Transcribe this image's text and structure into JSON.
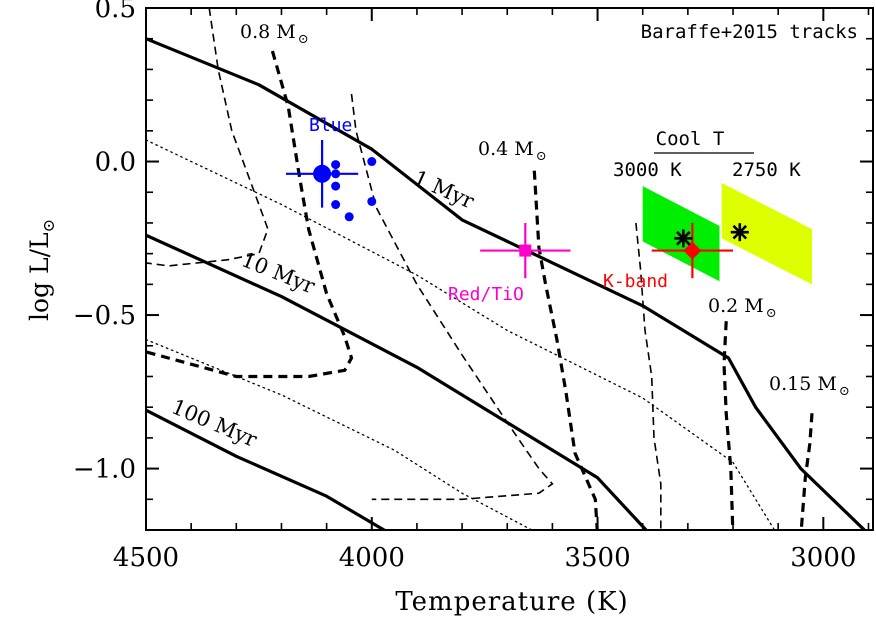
{
  "chart_data": {
    "type": "line",
    "title": "Baraffe+2015 tracks",
    "xlabel": "Temperature (K)",
    "ylabel_main": "log L/L",
    "ylabel_sub": "⊙",
    "xlim": [
      4500,
      2890
    ],
    "ylim": [
      -1.2,
      0.5
    ],
    "x_ticks": [
      4500,
      4000,
      3500,
      3000
    ],
    "x_tick_labels": [
      "4500",
      "4000",
      "3500",
      "3000"
    ],
    "y_ticks": [
      0.5,
      0.0,
      -0.5,
      -1.0
    ],
    "y_tick_labels": [
      "0.5",
      "0.0",
      "−0.5",
      "−1.0"
    ],
    "grid": false,
    "isochrones": [
      {
        "label": "1 Myr",
        "style": "solid",
        "points": [
          [
            4500,
            0.4
          ],
          [
            4250,
            0.25
          ],
          [
            4000,
            0.04
          ],
          [
            3800,
            -0.19
          ],
          [
            3400,
            -0.47
          ],
          [
            3210,
            -0.64
          ],
          [
            3150,
            -0.8
          ],
          [
            3050,
            -1.0
          ],
          [
            2895,
            -1.22
          ]
        ]
      },
      {
        "label": "10 Myr",
        "style": "solid",
        "points": [
          [
            4500,
            -0.24
          ],
          [
            4200,
            -0.44
          ],
          [
            3900,
            -0.67
          ],
          [
            3700,
            -0.85
          ],
          [
            3500,
            -1.03
          ],
          [
            3380,
            -1.22
          ]
        ]
      },
      {
        "label": "100 Myr",
        "style": "solid",
        "points": [
          [
            4500,
            -0.81
          ],
          [
            4300,
            -0.96
          ],
          [
            4100,
            -1.09
          ],
          [
            3950,
            -1.22
          ]
        ]
      }
    ],
    "interp_isochrones": [
      {
        "style": "dotted",
        "points": [
          [
            4500,
            0.07
          ],
          [
            4200,
            -0.14
          ],
          [
            3900,
            -0.37
          ],
          [
            3700,
            -0.55
          ],
          [
            3400,
            -0.77
          ],
          [
            3200,
            -0.98
          ],
          [
            3100,
            -1.22
          ]
        ]
      },
      {
        "style": "dotted",
        "points": [
          [
            4500,
            -0.58
          ],
          [
            4200,
            -0.76
          ],
          [
            3950,
            -0.94
          ],
          [
            3800,
            -1.08
          ],
          [
            3620,
            -1.22
          ]
        ]
      }
    ],
    "mass_tracks": [
      {
        "label": "0.8 M",
        "style": "thick-dashed",
        "points": [
          [
            4220,
            0.36
          ],
          [
            4185,
            0.18
          ],
          [
            4160,
            -0.05
          ],
          [
            4140,
            -0.22
          ],
          [
            4100,
            -0.43
          ],
          [
            4060,
            -0.57
          ],
          [
            4045,
            -0.64
          ],
          [
            4060,
            -0.68
          ],
          [
            4140,
            -0.7
          ],
          [
            4300,
            -0.7
          ],
          [
            4500,
            -0.62
          ]
        ]
      },
      {
        "label": "",
        "style": "thin-dashed",
        "points": [
          [
            4360,
            0.5
          ],
          [
            4340,
            0.3
          ],
          [
            4310,
            0.1
          ],
          [
            4260,
            -0.1
          ],
          [
            4230,
            -0.22
          ],
          [
            4250,
            -0.3
          ],
          [
            4320,
            -0.32
          ],
          [
            4450,
            -0.34
          ],
          [
            4500,
            -0.33
          ]
        ]
      },
      {
        "label": "",
        "style": "thin-dashed",
        "points": [
          [
            4045,
            0.22
          ],
          [
            4035,
            0.1
          ],
          [
            3990,
            -0.15
          ],
          [
            3900,
            -0.4
          ],
          [
            3800,
            -0.63
          ],
          [
            3700,
            -0.85
          ],
          [
            3630,
            -1.0
          ],
          [
            3600,
            -1.05
          ],
          [
            3630,
            -1.08
          ],
          [
            3800,
            -1.1
          ],
          [
            4000,
            -1.1
          ]
        ]
      },
      {
        "label": "0.4 M",
        "style": "thick-dashed",
        "points": [
          [
            3640,
            -0.03
          ],
          [
            3630,
            -0.28
          ],
          [
            3615,
            -0.4
          ],
          [
            3590,
            -0.58
          ],
          [
            3570,
            -0.75
          ],
          [
            3550,
            -0.95
          ],
          [
            3505,
            -1.1
          ],
          [
            3500,
            -1.22
          ]
        ]
      },
      {
        "label": "",
        "style": "thin-dashed",
        "points": [
          [
            3415,
            -0.2
          ],
          [
            3405,
            -0.35
          ],
          [
            3395,
            -0.55
          ],
          [
            3380,
            -0.7
          ],
          [
            3375,
            -0.9
          ],
          [
            3360,
            -1.05
          ],
          [
            3360,
            -1.22
          ]
        ]
      },
      {
        "label": "0.2 M",
        "style": "thick-dashed",
        "points": [
          [
            3215,
            -0.52
          ],
          [
            3220,
            -0.66
          ],
          [
            3215,
            -0.82
          ],
          [
            3205,
            -1.0
          ],
          [
            3200,
            -1.22
          ]
        ]
      },
      {
        "label": "0.15 M",
        "style": "thick-dashed",
        "points": [
          [
            3025,
            -0.82
          ],
          [
            3030,
            -0.92
          ],
          [
            3040,
            -1.03
          ],
          [
            3050,
            -1.22
          ]
        ]
      }
    ],
    "mass_label_sub": "⊙",
    "points": [
      {
        "label": "Blue",
        "color": "#0000ff",
        "x": 4110,
        "y": -0.04,
        "xerr": 80,
        "yerr_up": 0.11,
        "yerr_down": 0.11,
        "marker": "circle-large"
      },
      {
        "label": "",
        "color": "#0000ff",
        "x": 4080,
        "y": -0.01,
        "marker": "dot"
      },
      {
        "label": "",
        "color": "#0000ff",
        "x": 4000,
        "y": 0.0,
        "marker": "dot"
      },
      {
        "label": "",
        "color": "#0000ff",
        "x": 4080,
        "y": -0.04,
        "marker": "dot"
      },
      {
        "label": "",
        "color": "#0000ff",
        "x": 4080,
        "y": -0.08,
        "marker": "dot"
      },
      {
        "label": "",
        "color": "#0000ff",
        "x": 4080,
        "y": -0.14,
        "marker": "dot"
      },
      {
        "label": "",
        "color": "#0000ff",
        "x": 4000,
        "y": -0.13,
        "marker": "dot"
      },
      {
        "label": "",
        "color": "#0000ff",
        "x": 4050,
        "y": -0.18,
        "marker": "dot"
      },
      {
        "label": "Red/TiO",
        "color": "#ff00cc",
        "x": 3660,
        "y": -0.29,
        "xerr": 100,
        "yerr_up": 0.09,
        "yerr_down": 0.09,
        "marker": "square"
      },
      {
        "label": "K-band",
        "color": "#ff0000",
        "x": 3290,
        "y": -0.29,
        "xerr": 90,
        "yerr_up": 0.09,
        "yerr_down": 0.09,
        "marker": "diamond"
      },
      {
        "label": "",
        "color": "#000000",
        "x": 3310,
        "y": -0.25,
        "marker": "asterisk"
      },
      {
        "label": "",
        "color": "#000000",
        "x": 3185,
        "y": -0.23,
        "marker": "asterisk"
      }
    ],
    "regions": [
      {
        "color": "#00ee00",
        "points": [
          [
            3400,
            -0.08
          ],
          [
            3400,
            -0.26
          ],
          [
            3230,
            -0.39
          ],
          [
            3230,
            -0.21
          ]
        ]
      },
      {
        "color": "#ddff00",
        "points": [
          [
            3225,
            -0.07
          ],
          [
            3225,
            -0.25
          ],
          [
            3025,
            -0.4
          ],
          [
            3025,
            -0.22
          ]
        ]
      }
    ],
    "annotations": {
      "cool_t_title": "Cool T",
      "cool_t_left": "3000 K",
      "cool_t_right": "2750 K"
    }
  }
}
